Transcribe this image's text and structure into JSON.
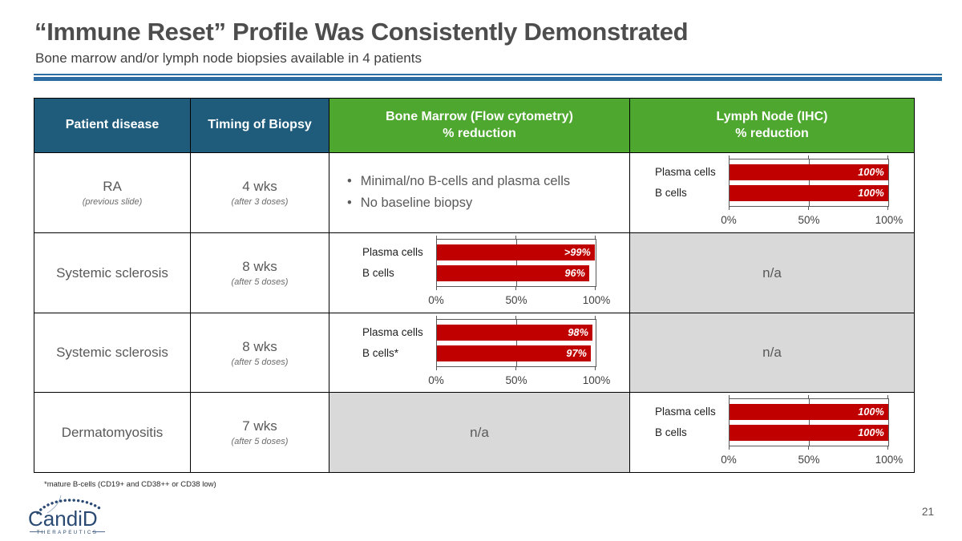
{
  "slide": {
    "title": "“Immune Reset” Profile Was Consistently Demonstrated",
    "subtitle": "Bone marrow and/or lymph node biopsies available in 4 patients",
    "footnote": "*mature B-cells (CD19+ and CD38++ or CD38 low)",
    "page_number": "21"
  },
  "logo": {
    "name": "CandiD",
    "tagline": "THERAPEUTICS"
  },
  "colors": {
    "header_blue": "#1F5C7B",
    "header_green": "#4EA72E",
    "bar_red": "#C00000",
    "na_gray": "#D9D9D9",
    "divider_blue": "#2E6DA4"
  },
  "table": {
    "headers": [
      {
        "line1": "Patient disease",
        "line2": ""
      },
      {
        "line1": "Timing of Biopsy",
        "line2": ""
      },
      {
        "line1": "Bone Marrow (Flow cytometry)",
        "line2": "% reduction"
      },
      {
        "line1": "Lymph Node (IHC)",
        "line2": "% reduction"
      }
    ],
    "rows": [
      {
        "disease": "RA",
        "disease_note": "(previous slide)",
        "timing": "4 wks",
        "timing_note": "(after 3 doses)",
        "bone_marrow": {
          "kind": "bullets",
          "items": [
            "Minimal/no B-cells and plasma cells",
            "No baseline biopsy"
          ]
        },
        "lymph_node": {
          "kind": "chart",
          "chart_index": 0
        }
      },
      {
        "disease": "Systemic sclerosis",
        "disease_note": "",
        "timing": "8 wks",
        "timing_note": "(after 5 doses)",
        "bone_marrow": {
          "kind": "chart",
          "chart_index": 1
        },
        "lymph_node": {
          "kind": "na",
          "label": "n/a"
        }
      },
      {
        "disease": "Systemic sclerosis",
        "disease_note": "",
        "timing": "8 wks",
        "timing_note": "(after 5 doses)",
        "bone_marrow": {
          "kind": "chart",
          "chart_index": 2
        },
        "lymph_node": {
          "kind": "na",
          "label": "n/a"
        }
      },
      {
        "disease": "Dermatomyositis",
        "disease_note": "",
        "timing": "7 wks",
        "timing_note": "(after 5 doses)",
        "bone_marrow": {
          "kind": "na",
          "label": "n/a"
        },
        "lymph_node": {
          "kind": "chart",
          "chart_index": 3
        }
      }
    ]
  },
  "chart_data": [
    {
      "id": "ra-lymph-node",
      "type": "bar",
      "orientation": "horizontal",
      "title": "",
      "categories": [
        "Plasma cells",
        "B cells"
      ],
      "values": [
        100,
        100
      ],
      "value_labels": [
        "100%",
        "100%"
      ],
      "xlim": [
        0,
        100
      ],
      "tick_labels": [
        "0%",
        "50%",
        "100%"
      ],
      "bar_color": "#C00000"
    },
    {
      "id": "systemic-sclerosis-1-bone-marrow",
      "type": "bar",
      "orientation": "horizontal",
      "title": "",
      "categories": [
        "Plasma cells",
        "B cells"
      ],
      "values": [
        99.5,
        96
      ],
      "value_labels": [
        ">99%",
        "96%"
      ],
      "xlim": [
        0,
        100
      ],
      "tick_labels": [
        "0%",
        "50%",
        "100%"
      ],
      "bar_color": "#C00000"
    },
    {
      "id": "systemic-sclerosis-2-bone-marrow",
      "type": "bar",
      "orientation": "horizontal",
      "title": "",
      "categories": [
        "Plasma cells",
        "B cells*"
      ],
      "values": [
        98,
        97
      ],
      "value_labels": [
        "98%",
        "97%"
      ],
      "xlim": [
        0,
        100
      ],
      "tick_labels": [
        "0%",
        "50%",
        "100%"
      ],
      "bar_color": "#C00000"
    },
    {
      "id": "dermatomyositis-lymph-node",
      "type": "bar",
      "orientation": "horizontal",
      "title": "",
      "categories": [
        "Plasma cells",
        "B cells"
      ],
      "values": [
        100,
        100
      ],
      "value_labels": [
        "100%",
        "100%"
      ],
      "xlim": [
        0,
        100
      ],
      "tick_labels": [
        "0%",
        "50%",
        "100%"
      ],
      "bar_color": "#C00000"
    }
  ]
}
